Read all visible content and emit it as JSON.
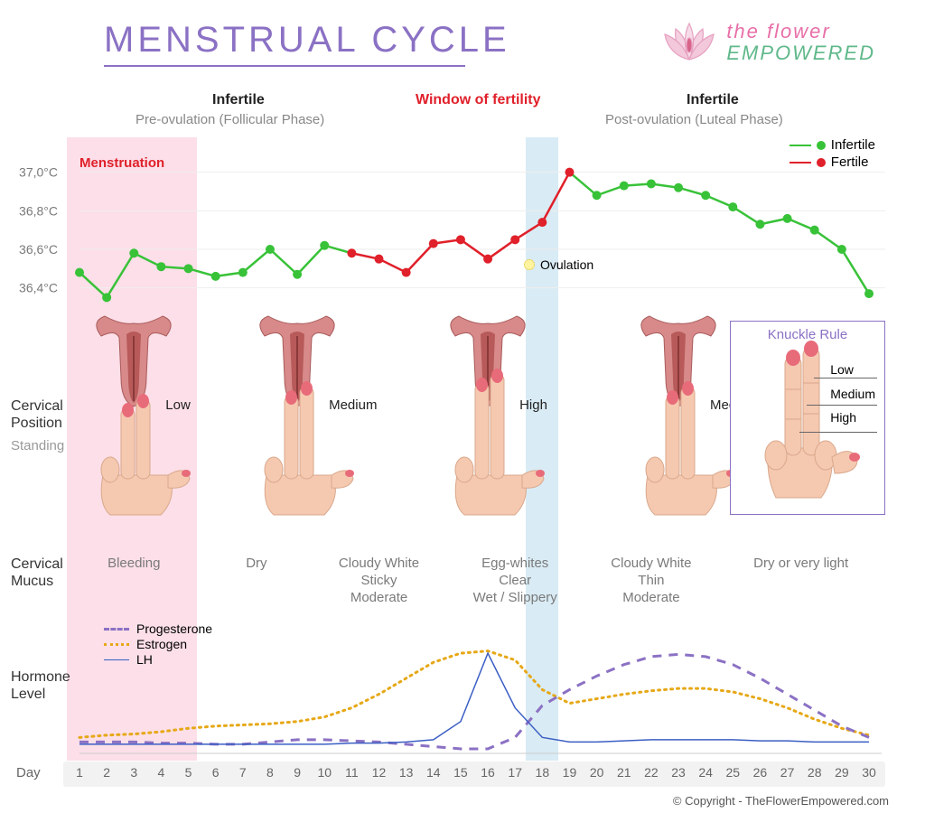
{
  "title": "MENSTRUAL CYCLE",
  "logo": {
    "line1": "the flower",
    "line2": "EMPOWERED"
  },
  "phases": {
    "infertile1_title": "Infertile",
    "infertile1_sub": "Pre-ovulation (Follicular Phase)",
    "fertility_title": "Window of fertility",
    "infertile2_title": "Infertile",
    "infertile2_sub": "Post-ovulation (Luteal Phase)"
  },
  "menstruation_label": "Menstruation",
  "temperature_chart": {
    "type": "line",
    "ylabels": [
      "37,0°C",
      "36,8°C",
      "36,6°C",
      "36,4°C"
    ],
    "yvalues": [
      37.0,
      36.8,
      36.6,
      36.4
    ],
    "ylim": [
      36.3,
      37.05
    ],
    "days": [
      1,
      2,
      3,
      4,
      5,
      6,
      7,
      8,
      9,
      10,
      11,
      12,
      13,
      14,
      15,
      16,
      17,
      18,
      19,
      20,
      21,
      22,
      23,
      24,
      25,
      26,
      27,
      28,
      29,
      30
    ],
    "temps": [
      36.48,
      36.35,
      36.58,
      36.51,
      36.5,
      36.46,
      36.48,
      36.6,
      36.47,
      36.62,
      36.58,
      36.55,
      36.48,
      36.63,
      36.65,
      36.55,
      36.65,
      36.74,
      37.0,
      36.88,
      36.93,
      36.94,
      36.92,
      36.88,
      36.82,
      36.73,
      36.76,
      36.7,
      36.6,
      36.37
    ],
    "segments": [
      {
        "from": 1,
        "to": 11,
        "color": "#38c238"
      },
      {
        "from": 11,
        "to": 19,
        "color": "#e0202a"
      },
      {
        "from": 19,
        "to": 30,
        "color": "#38c238"
      }
    ],
    "point_colors": {
      "infertile": "#38c238",
      "fertile": "#e0202a"
    },
    "fertile_range": [
      11,
      19
    ],
    "legend": {
      "infertile": "Infertile",
      "fertile": "Fertile"
    },
    "ovulation_label": "Ovulation",
    "grid_color": "#eeeeee",
    "line_width": 2.5,
    "marker_radius": 5
  },
  "bands": {
    "menstruation": {
      "from_day": 1,
      "to_day": 5.3,
      "color": "#fbd2de"
    },
    "ovulation": {
      "from_day": 17.4,
      "to_day": 18.6,
      "color": "#c9e3f0"
    }
  },
  "cervical_position": {
    "label": "Cervical\nPosition",
    "sublabel": "Standing",
    "items": [
      {
        "day": 3,
        "level": "Low"
      },
      {
        "day": 9,
        "level": "Medium"
      },
      {
        "day": 16,
        "level": "High"
      },
      {
        "day": 23,
        "level": "Medium"
      }
    ],
    "knuckle": {
      "title": "Knuckle Rule",
      "levels": [
        "Low",
        "Medium",
        "High"
      ]
    }
  },
  "cervical_mucus": {
    "label": "Cervical\nMucus",
    "items": [
      {
        "center_day": 3,
        "text": "Bleeding"
      },
      {
        "center_day": 7.5,
        "text": "Dry"
      },
      {
        "center_day": 12,
        "text": "Cloudy White\nSticky\nModerate"
      },
      {
        "center_day": 17,
        "text": "Egg-whites\nClear\nWet / Slippery"
      },
      {
        "center_day": 22,
        "text": "Cloudy White\nThin\nModerate"
      },
      {
        "center_day": 27.5,
        "text": "Dry or very light"
      }
    ]
  },
  "hormones": {
    "label": "Hormone\nLevel",
    "legend": {
      "progesterone": {
        "label": "Progesterone",
        "color": "#8b71c4",
        "style": "dashed"
      },
      "estrogen": {
        "label": "Estrogen",
        "color": "#e6a817",
        "style": "dotted"
      },
      "lh": {
        "label": "LH",
        "color": "#3b5fc4",
        "style": "solid"
      }
    },
    "ylim": [
      0,
      100
    ],
    "series": {
      "progesterone": [
        10,
        10,
        10,
        9,
        9,
        8,
        8,
        10,
        12,
        12,
        11,
        10,
        8,
        6,
        4,
        4,
        14,
        42,
        56,
        68,
        78,
        85,
        87,
        85,
        78,
        66,
        52,
        38,
        24,
        14
      ],
      "estrogen": [
        14,
        16,
        17,
        19,
        22,
        24,
        25,
        26,
        28,
        32,
        40,
        52,
        66,
        80,
        88,
        90,
        82,
        56,
        44,
        48,
        52,
        55,
        57,
        57,
        54,
        48,
        40,
        30,
        22,
        16
      ],
      "lh": [
        8,
        8,
        8,
        8,
        8,
        8,
        8,
        8,
        8,
        8,
        9,
        9,
        10,
        12,
        28,
        88,
        40,
        14,
        10,
        10,
        11,
        12,
        12,
        12,
        12,
        11,
        11,
        10,
        10,
        10
      ]
    },
    "line_widths": {
      "progesterone": 3,
      "estrogen": 3,
      "lh": 1.5
    }
  },
  "day_axis": {
    "label": "Day",
    "count": 30
  },
  "copyright": "© Copyright - TheFlowerEmpowered.com",
  "colors": {
    "title": "#8b71c4",
    "fertility_red": "#e0202a",
    "text_gray": "#7a7a7a",
    "skin": "#f5c9b0",
    "nail": "#e86b7a",
    "cervix_outer": "#d88a8a",
    "cervix_inner": "#b85a5a"
  }
}
